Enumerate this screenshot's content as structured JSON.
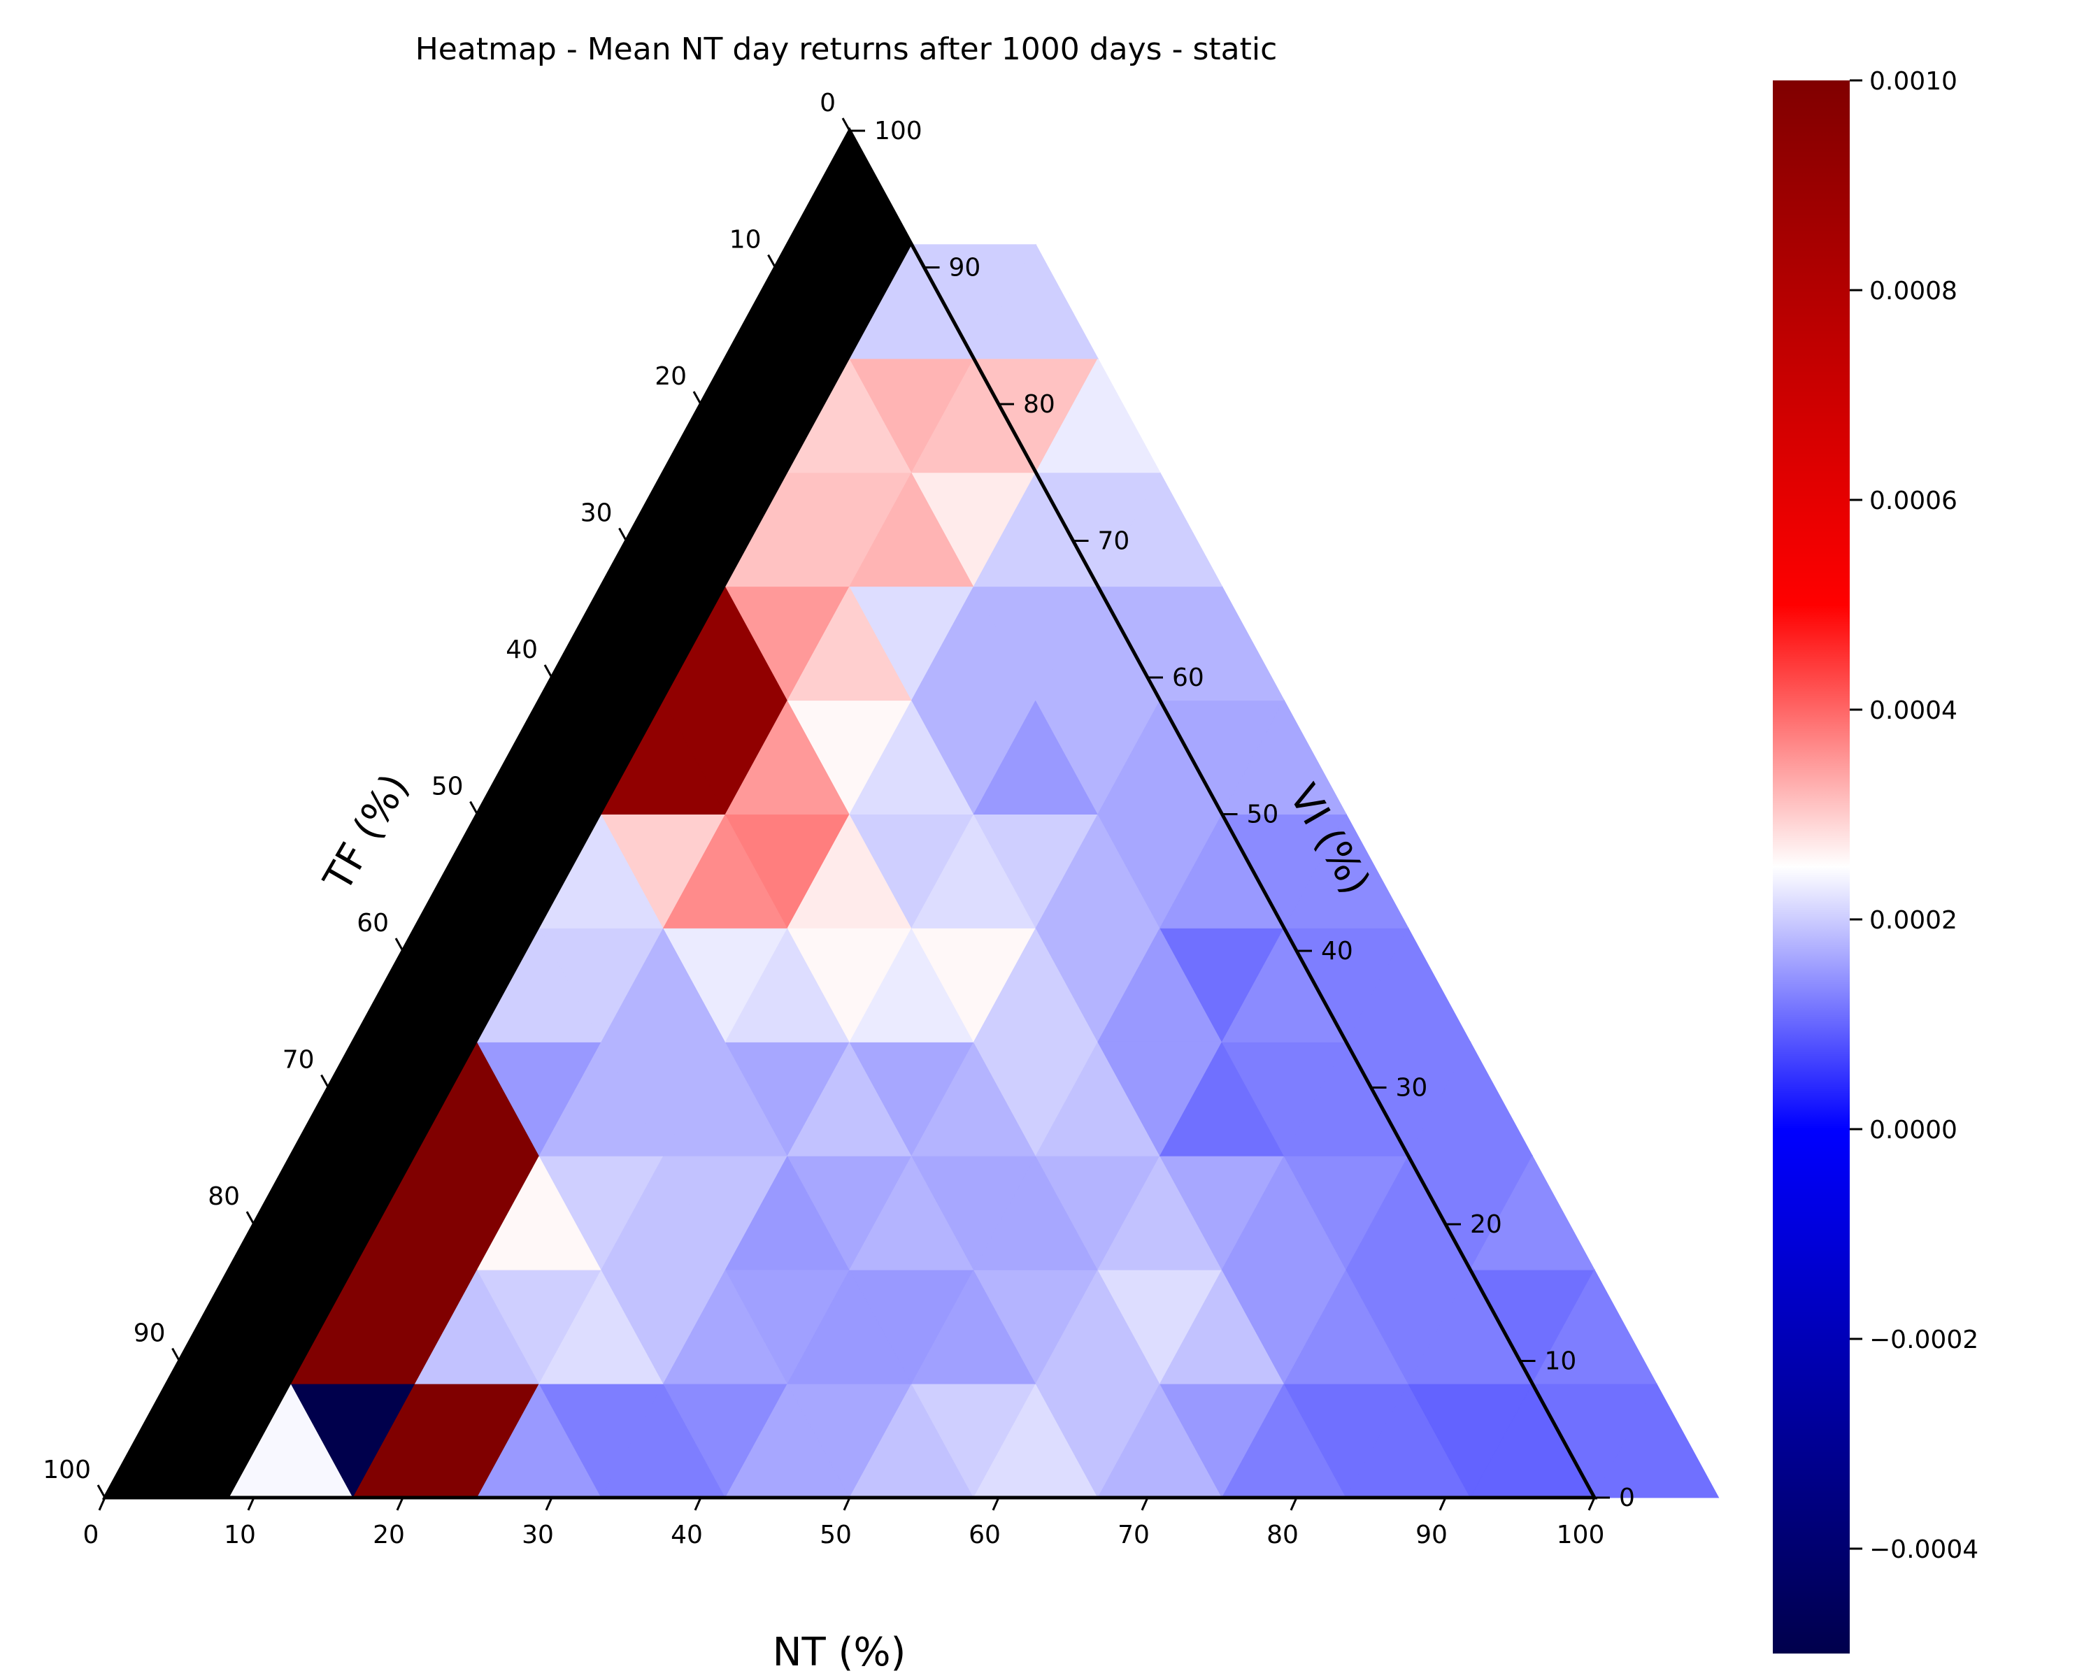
{
  "chart_data": {
    "type": "heatmap",
    "subtype": "ternary",
    "title": "Heatmap - Mean NT day returns after 1000 days - static",
    "axes": {
      "bottom": {
        "label": "NT (%)",
        "ticks": [
          "0",
          "10",
          "20",
          "30",
          "40",
          "50",
          "60",
          "70",
          "80",
          "90",
          "100"
        ]
      },
      "left": {
        "label": "TF (%)",
        "ticks": [
          "0",
          "10",
          "20",
          "30",
          "40",
          "50",
          "60",
          "70",
          "80",
          "90",
          "100"
        ]
      },
      "right": {
        "label": "VI (%)",
        "ticks": [
          "0",
          "10",
          "20",
          "30",
          "40",
          "50",
          "60",
          "70",
          "80",
          "90",
          "100"
        ]
      }
    },
    "colorbar": {
      "range": [
        -0.0005,
        0.001
      ],
      "ticks": [
        "0.0010",
        "0.0008",
        "0.0006",
        "0.0004",
        "0.0002",
        "0.0000",
        "−0.0002",
        "−0.0004"
      ],
      "tick_values": [
        0.001,
        0.0008,
        0.0006,
        0.0004,
        0.0002,
        0.0,
        -0.0002,
        -0.0004
      ],
      "colormap": "seismic",
      "colors": [
        "#00004c",
        "#0000ff",
        "#ffffff",
        "#ff0000",
        "#800000"
      ]
    },
    "missing_color": "#000000",
    "grid_step": 8.3333,
    "rows": [
      [
        0.00024,
        -0.0005,
        0.001,
        0.001,
        0.0001,
        6e-05,
        6e-05,
        8e-05,
        0.00012,
        0.00012,
        0.00016,
        0.00018,
        0.0002,
        0.00016,
        0.00014,
        0.0001,
        6e-05,
        4e-05,
        4e-05,
        2e-05,
        2e-05,
        4e-05,
        4e-05
      ],
      [
        0.001,
        0.001,
        0.00016,
        0.00018,
        0.0002,
        0.00016,
        0.00012,
        0.00011,
        0.0001,
        0.0001,
        0.00011,
        0.00014,
        0.00016,
        0.0002,
        0.00016,
        0.0001,
        8e-05,
        6e-05,
        6e-05,
        4e-05,
        6e-05
      ],
      [
        0.001,
        0.001,
        0.00026,
        0.00018,
        0.00016,
        0.00016,
        0.0001,
        0.00012,
        0.00014,
        0.00012,
        0.00012,
        0.00014,
        0.00016,
        0.00012,
        0.0001,
        8e-05,
        6e-05,
        6e-05,
        8e-05
      ],
      [
        0.001,
        0.0001,
        0.00014,
        0.00014,
        0.00014,
        0.00012,
        0.00016,
        0.00012,
        0.00014,
        0.00018,
        0.00016,
        0.0001,
        4e-05,
        6e-05,
        6e-05,
        6e-05,
        6e-05
      ],
      [
        0.00018,
        0.00018,
        0.00014,
        0.00022,
        0.0002,
        0.00026,
        0.00022,
        0.00026,
        0.00018,
        0.00014,
        0.0001,
        4e-05,
        8e-05,
        6e-05,
        6e-05
      ],
      [
        0.0002,
        0.00032,
        0.00042,
        0.00044,
        0.00028,
        0.00018,
        0.0002,
        0.00018,
        0.00014,
        0.00012,
        0.0001,
        8e-05,
        8e-05
      ],
      [
        0.00095,
        0.00095,
        0.0004,
        0.00026,
        0.0002,
        0.00014,
        0.0001,
        0.00014,
        0.00012,
        0.00012,
        0.00012
      ],
      [
        0.00095,
        0.0004,
        0.00032,
        0.0002,
        0.00014,
        0.00014,
        0.00014,
        0.00014,
        0.00014
      ],
      [
        0.00034,
        0.00034,
        0.00036,
        0.00028,
        0.00018,
        0.00018,
        0.00018
      ],
      [
        0.00032,
        0.00036,
        0.00034,
        0.00034,
        0.00022
      ],
      [
        0.00018,
        0.00018,
        0.00018
      ]
    ]
  }
}
